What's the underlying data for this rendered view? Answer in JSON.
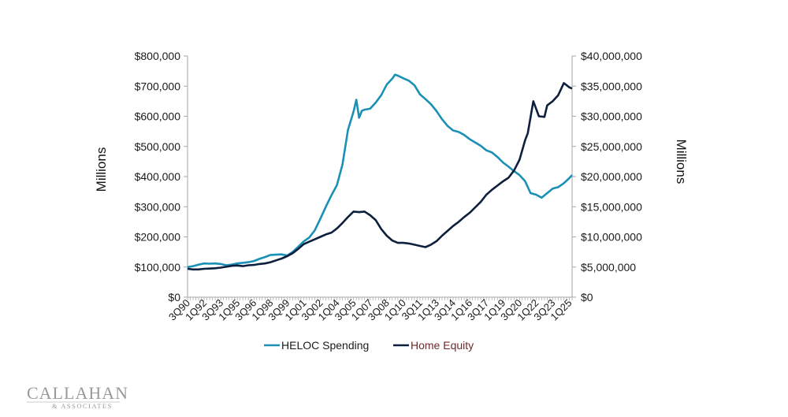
{
  "chart_data": {
    "type": "line",
    "left_axis": {
      "title": "Millions",
      "range": [
        0,
        800000
      ],
      "ticks": [
        0,
        100000,
        200000,
        300000,
        400000,
        500000,
        600000,
        700000,
        800000
      ],
      "tick_labels": [
        "$0",
        "$100,000",
        "$200,000",
        "$300,000",
        "$400,000",
        "$500,000",
        "$600,000",
        "$700,000",
        "$800,000"
      ]
    },
    "right_axis": {
      "title": "Millions",
      "range": [
        0,
        40000000
      ],
      "ticks": [
        0,
        5000000,
        10000000,
        15000000,
        20000000,
        25000000,
        30000000,
        35000000,
        40000000
      ],
      "tick_labels": [
        "$0",
        "$5,000,000",
        "$10,000,000",
        "$15,000,000",
        "$20,000,000",
        "$25,000,000",
        "$30,000,000",
        "$35,000,000",
        "$40,000,000"
      ]
    },
    "x_axis": {
      "range": [
        "3Q90",
        "2Q25"
      ],
      "tick_labels": [
        "3Q90",
        "1Q92",
        "3Q93",
        "1Q95",
        "3Q96",
        "1Q98",
        "3Q99",
        "1Q01",
        "3Q02",
        "1Q04",
        "3Q05",
        "1Q07",
        "3Q08",
        "1Q10",
        "3Q11",
        "1Q13",
        "3Q14",
        "1Q16",
        "3Q17",
        "1Q19",
        "3Q20",
        "1Q22",
        "3Q23",
        "1Q25"
      ]
    },
    "grid": false,
    "legend_position": "bottom",
    "series": [
      {
        "name": "HELOC Spending",
        "axis": "left",
        "color": "#1a90b5",
        "legend_text_color": "#1a1a1a",
        "points": [
          [
            "3Q90",
            100000
          ],
          [
            "1Q91",
            103000
          ],
          [
            "3Q91",
            108000
          ],
          [
            "1Q92",
            112000
          ],
          [
            "3Q92",
            111000
          ],
          [
            "1Q93",
            112000
          ],
          [
            "3Q93",
            110000
          ],
          [
            "1Q94",
            106000
          ],
          [
            "3Q94",
            108000
          ],
          [
            "1Q95",
            112000
          ],
          [
            "3Q95",
            114000
          ],
          [
            "1Q96",
            116000
          ],
          [
            "3Q96",
            120000
          ],
          [
            "1Q97",
            127000
          ],
          [
            "3Q97",
            133000
          ],
          [
            "1Q98",
            140000
          ],
          [
            "3Q98",
            141000
          ],
          [
            "1Q99",
            142000
          ],
          [
            "3Q99",
            138000
          ],
          [
            "1Q00",
            150000
          ],
          [
            "3Q00",
            167000
          ],
          [
            "1Q01",
            185000
          ],
          [
            "3Q01",
            198000
          ],
          [
            "1Q02",
            222000
          ],
          [
            "3Q02",
            260000
          ],
          [
            "1Q03",
            300000
          ],
          [
            "3Q03",
            338000
          ],
          [
            "1Q04",
            372000
          ],
          [
            "3Q04",
            440000
          ],
          [
            "1Q05",
            555000
          ],
          [
            "3Q05",
            615000
          ],
          [
            "4Q05",
            655000
          ],
          [
            "1Q06",
            595000
          ],
          [
            "2Q06",
            618000
          ],
          [
            "3Q06",
            622000
          ],
          [
            "1Q07",
            625000
          ],
          [
            "3Q07",
            645000
          ],
          [
            "1Q08",
            670000
          ],
          [
            "3Q08",
            705000
          ],
          [
            "1Q09",
            725000
          ],
          [
            "2Q09",
            738000
          ],
          [
            "3Q09",
            735000
          ],
          [
            "1Q10",
            726000
          ],
          [
            "3Q10",
            718000
          ],
          [
            "1Q11",
            703000
          ],
          [
            "3Q11",
            673000
          ],
          [
            "1Q12",
            657000
          ],
          [
            "3Q12",
            640000
          ],
          [
            "1Q13",
            617000
          ],
          [
            "3Q13",
            590000
          ],
          [
            "1Q14",
            568000
          ],
          [
            "3Q14",
            553000
          ],
          [
            "1Q15",
            548000
          ],
          [
            "3Q15",
            538000
          ],
          [
            "1Q16",
            524000
          ],
          [
            "3Q16",
            513000
          ],
          [
            "1Q17",
            502000
          ],
          [
            "3Q17",
            487000
          ],
          [
            "1Q18",
            480000
          ],
          [
            "3Q18",
            465000
          ],
          [
            "1Q19",
            447000
          ],
          [
            "3Q19",
            433000
          ],
          [
            "1Q20",
            418000
          ],
          [
            "3Q20",
            405000
          ],
          [
            "1Q21",
            385000
          ],
          [
            "3Q21",
            345000
          ],
          [
            "1Q22",
            340000
          ],
          [
            "3Q22",
            330000
          ],
          [
            "1Q23",
            345000
          ],
          [
            "3Q23",
            360000
          ],
          [
            "1Q24",
            365000
          ],
          [
            "3Q24",
            378000
          ],
          [
            "1Q25",
            395000
          ],
          [
            "2Q25",
            405000
          ]
        ]
      },
      {
        "name": "Home Equity",
        "axis": "right",
        "color": "#0d1f3c",
        "legend_text_color": "#6e2a2a",
        "points": [
          [
            "3Q90",
            4700000
          ],
          [
            "1Q91",
            4600000
          ],
          [
            "3Q91",
            4600000
          ],
          [
            "1Q92",
            4700000
          ],
          [
            "3Q92",
            4750000
          ],
          [
            "1Q93",
            4800000
          ],
          [
            "3Q93",
            4900000
          ],
          [
            "1Q94",
            5050000
          ],
          [
            "3Q94",
            5200000
          ],
          [
            "1Q95",
            5250000
          ],
          [
            "3Q95",
            5150000
          ],
          [
            "1Q96",
            5300000
          ],
          [
            "3Q96",
            5350000
          ],
          [
            "1Q97",
            5500000
          ],
          [
            "3Q97",
            5600000
          ],
          [
            "1Q98",
            5800000
          ],
          [
            "3Q98",
            6100000
          ],
          [
            "1Q99",
            6400000
          ],
          [
            "3Q99",
            6800000
          ],
          [
            "1Q00",
            7300000
          ],
          [
            "3Q00",
            8000000
          ],
          [
            "1Q01",
            8800000
          ],
          [
            "3Q01",
            9200000
          ],
          [
            "1Q02",
            9600000
          ],
          [
            "3Q02",
            10000000
          ],
          [
            "1Q03",
            10400000
          ],
          [
            "3Q03",
            10700000
          ],
          [
            "1Q04",
            11400000
          ],
          [
            "3Q04",
            12300000
          ],
          [
            "1Q05",
            13300000
          ],
          [
            "3Q05",
            14200000
          ],
          [
            "1Q06",
            14100000
          ],
          [
            "3Q06",
            14200000
          ],
          [
            "1Q07",
            13600000
          ],
          [
            "3Q07",
            12800000
          ],
          [
            "1Q08",
            11300000
          ],
          [
            "3Q08",
            10200000
          ],
          [
            "1Q09",
            9400000
          ],
          [
            "3Q09",
            9000000
          ],
          [
            "1Q10",
            9000000
          ],
          [
            "3Q10",
            8900000
          ],
          [
            "1Q11",
            8700000
          ],
          [
            "3Q11",
            8500000
          ],
          [
            "1Q12",
            8300000
          ],
          [
            "3Q12",
            8700000
          ],
          [
            "1Q13",
            9300000
          ],
          [
            "3Q13",
            10200000
          ],
          [
            "1Q14",
            11000000
          ],
          [
            "3Q14",
            11800000
          ],
          [
            "1Q15",
            12500000
          ],
          [
            "3Q15",
            13300000
          ],
          [
            "1Q16",
            14000000
          ],
          [
            "3Q16",
            14900000
          ],
          [
            "1Q17",
            15800000
          ],
          [
            "3Q17",
            17000000
          ],
          [
            "1Q18",
            17800000
          ],
          [
            "3Q18",
            18500000
          ],
          [
            "1Q19",
            19200000
          ],
          [
            "3Q19",
            19800000
          ],
          [
            "1Q20",
            21000000
          ],
          [
            "3Q20",
            22800000
          ],
          [
            "1Q21",
            26000000
          ],
          [
            "2Q21",
            27200000
          ],
          [
            "4Q21",
            32500000
          ],
          [
            "2Q22",
            30000000
          ],
          [
            "4Q22",
            29900000
          ],
          [
            "1Q23",
            31800000
          ],
          [
            "3Q23",
            32500000
          ],
          [
            "1Q24",
            33500000
          ],
          [
            "3Q24",
            35500000
          ],
          [
            "1Q25",
            34800000
          ],
          [
            "2Q25",
            34600000
          ]
        ]
      }
    ]
  },
  "branding": {
    "logo_name": "CALLAHAN",
    "logo_sub": "& ASSOCIATES"
  }
}
